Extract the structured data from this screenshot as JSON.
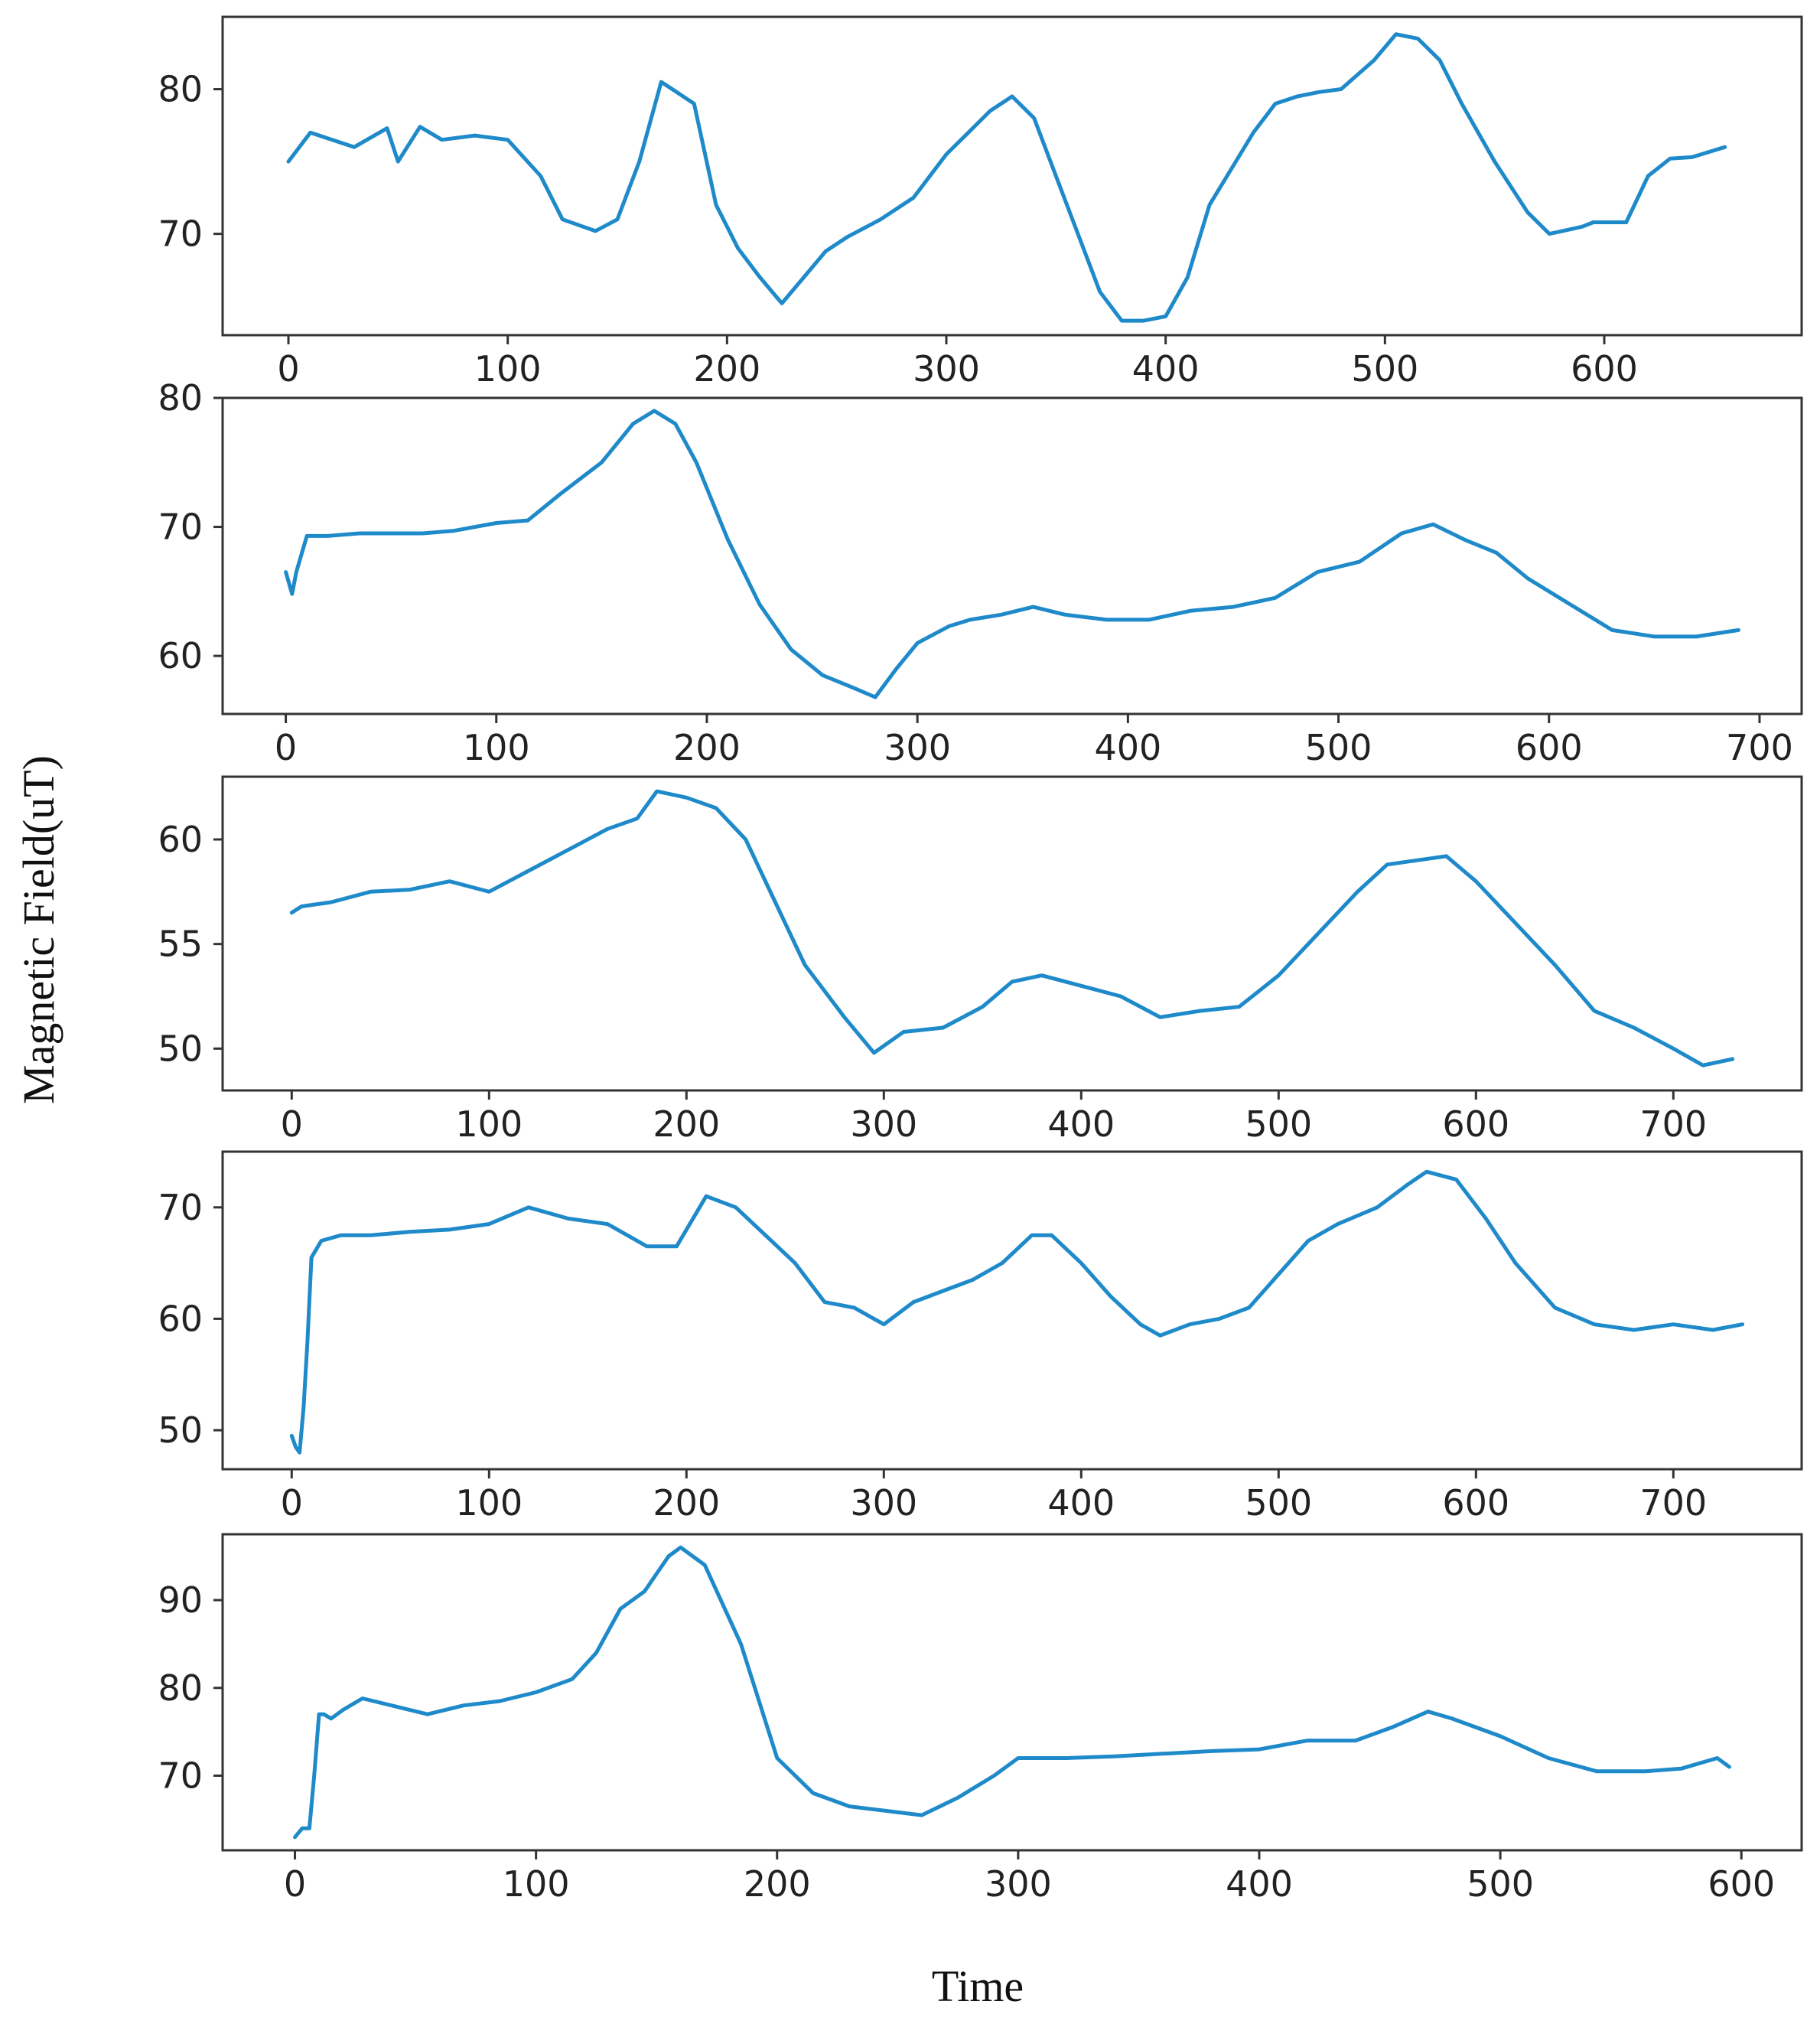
{
  "chart_data": {
    "type": "line",
    "ylabel": "Magnetic Field(uT)",
    "xlabel": "Time",
    "color": "#1f8ac9",
    "subplots": [
      {
        "name": "panel-1",
        "xlim": [
          -30,
          690
        ],
        "ylim": [
          63,
          85
        ],
        "xticks": [
          0,
          100,
          200,
          300,
          400,
          500,
          600
        ],
        "yticks": [
          70,
          80
        ],
        "series": {
          "x": [
            0,
            10,
            20,
            30,
            45,
            50,
            60,
            70,
            85,
            100,
            115,
            125,
            140,
            150,
            160,
            170,
            175,
            185,
            195,
            205,
            215,
            225,
            235,
            245,
            255,
            270,
            285,
            300,
            310,
            320,
            330,
            340,
            350,
            360,
            370,
            380,
            390,
            400,
            410,
            420,
            430,
            440,
            450,
            460,
            470,
            480,
            495,
            505,
            515,
            525,
            535,
            550,
            565,
            575,
            590,
            595,
            610,
            620,
            630,
            640,
            655
          ],
          "y": [
            75,
            77,
            76.5,
            76,
            77.3,
            75,
            77.4,
            76.5,
            76.8,
            76.5,
            74,
            71,
            70.2,
            71,
            75,
            80.5,
            80,
            79,
            72,
            69,
            67,
            65.2,
            67,
            68.8,
            69.8,
            71,
            72.5,
            75.5,
            77,
            78.5,
            79.5,
            78,
            74,
            70,
            66,
            64,
            64,
            64.3,
            67,
            72,
            74.5,
            77,
            79,
            79.5,
            79.8,
            80,
            82,
            83.8,
            83.5,
            82,
            79,
            75,
            71.5,
            70,
            70.5,
            70.8,
            70.8,
            74,
            75.2,
            75.3,
            76
          ]
        }
      },
      {
        "name": "panel-2",
        "xlim": [
          -30,
          720
        ],
        "ylim": [
          55.5,
          80
        ],
        "xticks": [
          0,
          100,
          200,
          300,
          400,
          500,
          600,
          700
        ],
        "yticks": [
          60,
          70,
          80
        ],
        "series": {
          "x": [
            0,
            3,
            5,
            10,
            20,
            35,
            50,
            65,
            80,
            100,
            115,
            130,
            150,
            165,
            175,
            185,
            195,
            210,
            225,
            240,
            255,
            270,
            280,
            290,
            300,
            315,
            325,
            340,
            355,
            370,
            390,
            410,
            430,
            450,
            470,
            490,
            510,
            530,
            545,
            560,
            575,
            590,
            610,
            630,
            650,
            670,
            690
          ],
          "y": [
            66.5,
            64.8,
            66.5,
            69.3,
            69.3,
            69.5,
            69.5,
            69.5,
            69.7,
            70.3,
            70.5,
            72.5,
            75,
            78,
            79,
            78,
            75,
            69,
            64,
            60.5,
            58.5,
            57.5,
            56.8,
            59,
            61,
            62.3,
            62.8,
            63.2,
            63.8,
            63.2,
            62.8,
            62.8,
            63.5,
            63.8,
            64.5,
            66.5,
            67.3,
            69.5,
            70.2,
            69,
            68,
            66,
            64,
            62,
            61.5,
            61.5,
            62
          ]
        }
      },
      {
        "name": "panel-3",
        "xlim": [
          -35,
          765
        ],
        "ylim": [
          48,
          63
        ],
        "xticks": [
          0,
          100,
          200,
          300,
          400,
          500,
          600,
          700
        ],
        "yticks": [
          50,
          55,
          60
        ],
        "series": {
          "x": [
            0,
            5,
            20,
            40,
            60,
            80,
            100,
            120,
            140,
            160,
            175,
            185,
            200,
            215,
            230,
            245,
            260,
            280,
            295,
            310,
            330,
            350,
            365,
            380,
            400,
            420,
            440,
            460,
            480,
            500,
            520,
            540,
            555,
            570,
            585,
            600,
            620,
            640,
            660,
            680,
            700,
            715,
            730
          ],
          "y": [
            56.5,
            56.8,
            57,
            57.5,
            57.6,
            58,
            57.5,
            58.5,
            59.5,
            60.5,
            61,
            62.3,
            62,
            61.5,
            60,
            57,
            54,
            51.5,
            49.8,
            50.8,
            51,
            52,
            53.2,
            53.5,
            53,
            52.5,
            51.5,
            51.8,
            52,
            53.5,
            55.5,
            57.5,
            58.8,
            59,
            59.2,
            58,
            56,
            54,
            51.8,
            51,
            50,
            49.2,
            49.5
          ]
        }
      },
      {
        "name": "panel-4",
        "xlim": [
          -35,
          765
        ],
        "ylim": [
          46.5,
          75
        ],
        "xticks": [
          0,
          100,
          200,
          300,
          400,
          500,
          600,
          700
        ],
        "yticks": [
          50,
          60,
          70
        ],
        "series": {
          "x": [
            0,
            2,
            4,
            6,
            8,
            10,
            15,
            25,
            40,
            60,
            80,
            100,
            120,
            140,
            160,
            180,
            195,
            210,
            225,
            240,
            255,
            270,
            285,
            300,
            315,
            330,
            345,
            360,
            375,
            385,
            400,
            415,
            430,
            440,
            455,
            470,
            485,
            500,
            515,
            530,
            550,
            565,
            575,
            590,
            605,
            620,
            640,
            660,
            680,
            700,
            720,
            735
          ],
          "y": [
            49.5,
            48.5,
            48,
            52,
            58,
            65.5,
            67,
            67.5,
            67.5,
            67.8,
            68,
            68.5,
            70,
            69,
            68.5,
            66.5,
            66.5,
            71,
            70,
            67.5,
            65,
            61.5,
            61,
            59.5,
            61.5,
            62.5,
            63.5,
            65,
            67.5,
            67.5,
            65,
            62,
            59.5,
            58.5,
            59.5,
            60,
            61,
            64,
            67,
            68.5,
            70,
            72,
            73.2,
            72.5,
            69,
            65,
            61,
            59.5,
            59,
            59.5,
            59,
            59.5
          ]
        }
      },
      {
        "name": "panel-5",
        "xlim": [
          -30,
          625
        ],
        "ylim": [
          61.5,
          97.5
        ],
        "xticks": [
          0,
          100,
          200,
          300,
          400,
          500,
          600
        ],
        "yticks": [
          70,
          80,
          90
        ],
        "series": {
          "x": [
            0,
            3,
            6,
            8,
            10,
            12,
            15,
            20,
            28,
            40,
            55,
            70,
            85,
            100,
            115,
            125,
            135,
            145,
            150,
            155,
            160,
            170,
            185,
            200,
            215,
            230,
            245,
            260,
            275,
            290,
            300,
            320,
            340,
            360,
            380,
            400,
            420,
            440,
            455,
            470,
            480,
            500,
            520,
            540,
            560,
            575,
            590,
            595
          ],
          "y": [
            63,
            64,
            64,
            70,
            77,
            77,
            76.5,
            77.5,
            78.8,
            78,
            77,
            78,
            78.5,
            79.5,
            81,
            84,
            89,
            91,
            93,
            95,
            96,
            94,
            85,
            72,
            68,
            66.5,
            66,
            65.5,
            67.5,
            70,
            72,
            72,
            72.2,
            72.5,
            72.8,
            73,
            74,
            74,
            75.5,
            77.3,
            76.5,
            74.5,
            72,
            70.5,
            70.5,
            70.8,
            72,
            71
          ]
        }
      }
    ]
  }
}
